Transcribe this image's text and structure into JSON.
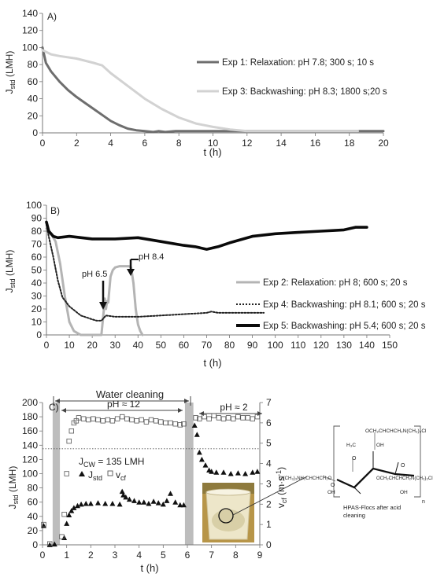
{
  "chart_data": [
    {
      "panel_label": "A)",
      "type": "line",
      "xlabel": "t (h)",
      "ylabel": "J",
      "ylabel_sub": "std",
      "ylabel_unit": " (LMH)",
      "xlim": [
        0,
        20
      ],
      "ylim": [
        0,
        140
      ],
      "xticks": [
        "0",
        "2",
        "4",
        "6",
        "8",
        "10",
        "12",
        "14",
        "16",
        "18",
        "20"
      ],
      "yticks": [
        "0",
        "20",
        "40",
        "60",
        "80",
        "100",
        "120",
        "140"
      ],
      "legend_position": "right",
      "series": [
        {
          "name": "Exp 1: Relaxation: pH 7.8; 300 s; 10 s",
          "color": "#6e6e6e",
          "style": "solid-thick",
          "x": [
            0,
            0.2,
            0.5,
            1,
            1.5,
            2,
            2.5,
            3,
            3.5,
            4,
            4.5,
            5,
            5.5,
            6,
            6.5,
            6.8,
            7.2,
            7.8,
            8,
            9,
            10,
            11,
            12,
            14,
            16,
            18,
            20
          ],
          "y": [
            100,
            82,
            72,
            60,
            50,
            42,
            35,
            28,
            21,
            14,
            9,
            5,
            3,
            2,
            1,
            2,
            1,
            2,
            2,
            2,
            2,
            2,
            2,
            2,
            2,
            2,
            2
          ]
        },
        {
          "name": "Exp 3: Backwashing: pH 8.3; 1800 s;20 s",
          "color": "#d2d2d2",
          "style": "solid-thick",
          "x": [
            0,
            0.5,
            1,
            2,
            3,
            3.5,
            4,
            5,
            6,
            7,
            8,
            9,
            10,
            11,
            11.5,
            12,
            14,
            16,
            18,
            18.5
          ],
          "y": [
            97,
            92,
            90,
            87,
            82,
            79,
            70,
            55,
            40,
            28,
            18,
            11,
            7,
            4,
            3,
            2,
            2,
            2,
            2,
            2
          ]
        }
      ]
    },
    {
      "panel_label": "B)",
      "type": "line",
      "xlabel": "t (h)",
      "ylabel": "J",
      "ylabel_sub": "std",
      "ylabel_unit": " (LMH)",
      "xlim": [
        0,
        150
      ],
      "ylim": [
        0,
        100
      ],
      "xticks": [
        "0",
        "10",
        "20",
        "30",
        "40",
        "50",
        "60",
        "70",
        "80",
        "90",
        "100",
        "110",
        "120",
        "130",
        "140",
        "150"
      ],
      "yticks": [
        "0",
        "10",
        "20",
        "30",
        "40",
        "50",
        "60",
        "70",
        "80",
        "90",
        "100"
      ],
      "legend_position": "right",
      "annotations": [
        {
          "text": "pH 6.5",
          "x": 26,
          "y": 30
        },
        {
          "text": "pH 8.4",
          "x": 36,
          "y": 52
        }
      ],
      "series": [
        {
          "name": "Exp 2: Relaxation: pH 8; 600 s; 20 s",
          "color": "#b4b4b4",
          "style": "solid-thick",
          "x": [
            0,
            2,
            4,
            6,
            8,
            10,
            12,
            14,
            15,
            24,
            25,
            25.5,
            26,
            26.5,
            27,
            27.5,
            28,
            29,
            30,
            32,
            34,
            36,
            37,
            38,
            39,
            40,
            41,
            42
          ],
          "y": [
            82,
            78,
            72,
            55,
            30,
            10,
            3,
            1,
            0,
            0,
            18,
            28,
            20,
            26,
            25,
            35,
            45,
            50,
            52,
            53,
            53,
            53,
            52,
            40,
            20,
            8,
            3,
            0
          ]
        },
        {
          "name": "Exp 4: Backwashing: pH 8.1; 600 s; 20 s",
          "color": "#222222",
          "style": "dotted",
          "x": [
            0,
            1,
            3,
            5,
            7,
            10,
            15,
            20,
            22,
            24,
            26,
            30,
            40,
            50,
            60,
            70,
            72,
            75,
            80,
            90,
            95
          ],
          "y": [
            85,
            76,
            60,
            42,
            29,
            22,
            15,
            12,
            11,
            11,
            15,
            14,
            14,
            15,
            16,
            17,
            18,
            17,
            17,
            17,
            17
          ]
        },
        {
          "name": "Exp 5: Backwashing: pH 5.4; 600 s; 20 s",
          "color": "#0a0a0a",
          "style": "solid-thicker",
          "x": [
            0,
            1,
            3,
            5,
            10,
            20,
            30,
            40,
            50,
            60,
            65,
            70,
            75,
            80,
            90,
            100,
            110,
            120,
            130,
            135,
            140
          ],
          "y": [
            87,
            80,
            76,
            75,
            76,
            74,
            74,
            75,
            72,
            69,
            68,
            66,
            68,
            71,
            76,
            78,
            79,
            80,
            81,
            83,
            83
          ]
        }
      ]
    },
    {
      "panel_label": "C)",
      "type": "scatter",
      "xlabel": "t (h)",
      "ylabel": "J",
      "ylabel_sub": "std",
      "ylabel_unit": " (LMH)",
      "y2label": "v",
      "y2label_sub": "cf",
      "y2label_unit": " (m·s",
      "y2label_sup": "-1",
      "y2label_close": ")",
      "xlim": [
        0,
        9
      ],
      "ylim": [
        0,
        200
      ],
      "y2lim": [
        0,
        7
      ],
      "xticks": [
        "0",
        "1",
        "2",
        "3",
        "4",
        "5",
        "6",
        "7",
        "8",
        "9"
      ],
      "yticks": [
        "0",
        "20",
        "40",
        "60",
        "80",
        "100",
        "120",
        "140",
        "160",
        "180",
        "200"
      ],
      "y2ticks": [
        "0",
        "1",
        "2",
        "3",
        "4",
        "5",
        "6",
        "7"
      ],
      "legend_position": "center-left",
      "annotations": [
        {
          "text": "Water cleaning"
        },
        {
          "text": "pH ≈ 12"
        },
        {
          "text": "pH ≈ 2"
        },
        {
          "text_main": "J",
          "text_sub": "CW",
          "text_tail": " = 135 LMH",
          "y": 135
        }
      ],
      "cleaning_bars_h": [
        [
          0.42,
          0.72
        ],
        [
          5.9,
          6.25
        ]
      ],
      "reference_line_y": 135,
      "series": [
        {
          "name_main": "J",
          "name_sub": "std",
          "marker": "filled-triangle",
          "axis": "left",
          "color": "#111111",
          "x": [
            0.05,
            0.3,
            0.5,
            0.9,
            1.0,
            1.1,
            1.2,
            1.3,
            1.45,
            1.6,
            1.8,
            2.0,
            2.3,
            2.6,
            2.9,
            3.2,
            3.3,
            3.35,
            3.45,
            3.6,
            3.8,
            4.0,
            4.2,
            4.4,
            4.6,
            4.8,
            5.0,
            5.15,
            5.3,
            5.5,
            5.7,
            5.85,
            6.3,
            6.4,
            6.5,
            6.6,
            6.75,
            6.9,
            7.0,
            7.2,
            7.5,
            7.8,
            8.1,
            8.4,
            8.7,
            8.9
          ],
          "y": [
            27,
            0,
            1,
            10,
            30,
            42,
            48,
            52,
            55,
            57,
            58,
            58,
            59,
            58,
            58,
            57,
            75,
            70,
            67,
            64,
            62,
            60,
            60,
            58,
            61,
            59,
            57,
            62,
            72,
            60,
            56,
            56,
            168,
            155,
            130,
            120,
            112,
            105,
            103,
            102,
            102,
            100,
            101,
            100,
            102,
            103
          ]
        },
        {
          "name_main": "v",
          "name_sub": "cf",
          "marker": "open-square",
          "axis": "right",
          "color": "#555555",
          "x": [
            0.05,
            0.3,
            0.8,
            0.9,
            1.0,
            1.1,
            1.2,
            1.3,
            1.4,
            1.5,
            1.7,
            1.9,
            2.1,
            2.3,
            2.5,
            2.7,
            2.9,
            3.1,
            3.3,
            3.5,
            3.7,
            3.9,
            4.1,
            4.3,
            4.5,
            4.7,
            4.9,
            5.1,
            5.3,
            5.5,
            5.7,
            5.85,
            6.35,
            6.5,
            6.7,
            6.9,
            7.1,
            7.3,
            7.5,
            7.7,
            7.9,
            8.1,
            8.3,
            8.5,
            8.7,
            8.9
          ],
          "y": [
            1.0,
            0.05,
            0.4,
            1.5,
            3.5,
            5.1,
            5.6,
            6.0,
            6.1,
            6.25,
            6.2,
            6.15,
            6.2,
            6.15,
            6.1,
            6.15,
            6.1,
            6.2,
            6.3,
            6.2,
            6.15,
            6.1,
            6.15,
            6.05,
            6.15,
            6.1,
            6.05,
            6.0,
            6.0,
            5.95,
            5.9,
            5.95,
            6.25,
            6.2,
            6.3,
            6.2,
            6.35,
            6.25,
            6.2,
            6.25,
            6.2,
            6.3,
            6.25,
            6.25,
            6.2,
            6.3
          ]
        }
      ]
    }
  ],
  "inset": {
    "caption_line1": "HPAS-Flocs after acid",
    "caption_line2": "cleaning",
    "chem_top": "OCH₂CHCHCH₂N(CH₃)₃Cl",
    "chem_mid_left": "H₃C",
    "chem_mid_right": "OH",
    "chem_left": "Cl(CH₃)₃NH₂CHCHCH₂O",
    "chem_right": "OCH₂CHCHCH₂N(CH₃)₃Cl",
    "chem_oh_left": "OH",
    "chem_oh_right": "OH",
    "chem_o1": "O",
    "chem_o2": "O",
    "chem_o3": "O",
    "chem_n": "n"
  }
}
